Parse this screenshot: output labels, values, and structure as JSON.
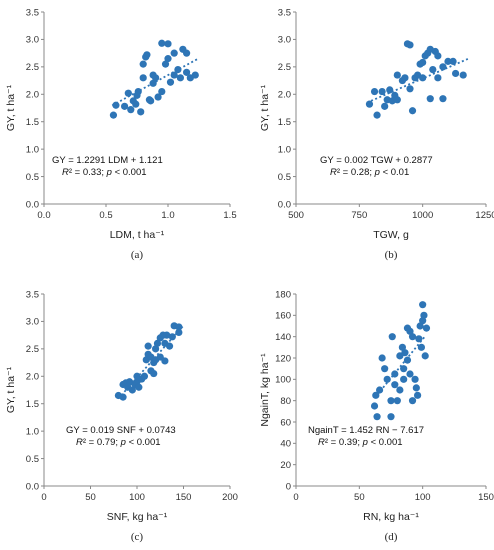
{
  "chart_data": [
    {
      "type": "scatter",
      "panel_label": "(a)",
      "xlabel": "LDM, t ha⁻¹",
      "ylabel": "GY, t ha⁻¹",
      "xlim": [
        0,
        1.5
      ],
      "ylim": [
        0,
        3.5
      ],
      "xticks": [
        "0.0",
        "0.5",
        "1.0",
        "1.5"
      ],
      "yticks": [
        "0.0",
        "0.5",
        "1.0",
        "1.5",
        "2.0",
        "2.5",
        "3.0",
        "3.5"
      ],
      "equation": "GY = 1.2291 LDM + 1.121",
      "stats": "R² = 0.33; p < 0.001",
      "trendline": {
        "slope": 1.2291,
        "intercept": 1.121,
        "x_range": [
          0.55,
          1.25
        ]
      },
      "color": "#2e75b6",
      "points": [
        [
          0.56,
          1.62
        ],
        [
          0.58,
          1.8
        ],
        [
          0.65,
          1.78
        ],
        [
          0.68,
          2.02
        ],
        [
          0.7,
          1.72
        ],
        [
          0.72,
          1.88
        ],
        [
          0.74,
          1.82
        ],
        [
          0.75,
          1.98
        ],
        [
          0.78,
          1.68
        ],
        [
          0.76,
          2.05
        ],
        [
          0.8,
          2.3
        ],
        [
          0.8,
          2.55
        ],
        [
          0.82,
          2.68
        ],
        [
          0.83,
          2.72
        ],
        [
          0.85,
          1.9
        ],
        [
          0.86,
          1.88
        ],
        [
          0.88,
          2.2
        ],
        [
          0.9,
          2.3
        ],
        [
          0.88,
          2.35
        ],
        [
          0.92,
          1.95
        ],
        [
          0.95,
          2.05
        ],
        [
          0.95,
          2.93
        ],
        [
          1.0,
          2.92
        ],
        [
          1.0,
          2.65
        ],
        [
          1.02,
          2.22
        ],
        [
          1.05,
          2.35
        ],
        [
          1.05,
          2.75
        ],
        [
          1.08,
          2.45
        ],
        [
          1.1,
          2.3
        ],
        [
          1.12,
          2.82
        ],
        [
          1.15,
          2.75
        ],
        [
          1.15,
          2.4
        ],
        [
          1.18,
          2.3
        ],
        [
          1.22,
          2.35
        ],
        [
          0.98,
          2.55
        ]
      ]
    },
    {
      "type": "scatter",
      "panel_label": "(b)",
      "xlabel": "TGW, g",
      "ylabel": "GY, t ha⁻¹",
      "xlim": [
        500,
        1250
      ],
      "ylim": [
        0,
        3.5
      ],
      "xticks": [
        "500",
        "750",
        "1000",
        "1250"
      ],
      "yticks": [
        "0.0",
        "0.5",
        "1.0",
        "1.5",
        "2.0",
        "2.5",
        "3.0",
        "3.5"
      ],
      "equation": "GY = 0.002 TGW + 0.2877",
      "stats": "R² = 0.28; p < 0.01",
      "trendline": {
        "slope": 0.002,
        "intercept": 0.2877,
        "x_range": [
          780,
          1180
        ]
      },
      "color": "#2e75b6",
      "points": [
        [
          790,
          1.82
        ],
        [
          810,
          2.05
        ],
        [
          820,
          1.62
        ],
        [
          840,
          2.05
        ],
        [
          850,
          1.78
        ],
        [
          860,
          1.9
        ],
        [
          870,
          2.08
        ],
        [
          880,
          1.88
        ],
        [
          890,
          1.98
        ],
        [
          900,
          1.9
        ],
        [
          900,
          2.35
        ],
        [
          920,
          2.25
        ],
        [
          930,
          2.3
        ],
        [
          940,
          2.92
        ],
        [
          950,
          2.9
        ],
        [
          950,
          2.1
        ],
        [
          960,
          1.7
        ],
        [
          970,
          2.3
        ],
        [
          980,
          2.35
        ],
        [
          990,
          2.55
        ],
        [
          1000,
          2.3
        ],
        [
          1010,
          2.7
        ],
        [
          1020,
          2.75
        ],
        [
          1030,
          2.82
        ],
        [
          1030,
          1.92
        ],
        [
          1040,
          2.45
        ],
        [
          1050,
          2.78
        ],
        [
          1060,
          2.7
        ],
        [
          1060,
          2.3
        ],
        [
          1080,
          1.92
        ],
        [
          1080,
          2.5
        ],
        [
          1100,
          2.6
        ],
        [
          1120,
          2.6
        ],
        [
          1130,
          2.38
        ],
        [
          1160,
          2.35
        ],
        [
          1000,
          2.58
        ]
      ]
    },
    {
      "type": "scatter",
      "panel_label": "(c)",
      "xlabel": "SNF, kg ha⁻¹",
      "ylabel": "GY, t ha⁻¹",
      "xlim": [
        0,
        200
      ],
      "ylim": [
        0,
        3.5
      ],
      "xticks": [
        "0",
        "50",
        "100",
        "150",
        "200"
      ],
      "yticks": [
        "0.0",
        "0.5",
        "1.0",
        "1.5",
        "2.0",
        "2.5",
        "3.0",
        "3.5"
      ],
      "equation": "GY = 0.019 SNF + 0.0743",
      "stats": "R² = 0.79; p < 0.001",
      "trendline": {
        "slope": 0.019,
        "intercept": 0.0743,
        "x_range": [
          80,
          150
        ]
      },
      "color": "#2e75b6",
      "points": [
        [
          80,
          1.65
        ],
        [
          85,
          1.62
        ],
        [
          85,
          1.85
        ],
        [
          88,
          1.88
        ],
        [
          90,
          1.8
        ],
        [
          92,
          1.9
        ],
        [
          95,
          1.75
        ],
        [
          98,
          1.85
        ],
        [
          100,
          1.9
        ],
        [
          100,
          2.0
        ],
        [
          102,
          1.8
        ],
        [
          105,
          1.95
        ],
        [
          108,
          2.0
        ],
        [
          110,
          2.3
        ],
        [
          112,
          2.4
        ],
        [
          115,
          2.35
        ],
        [
          115,
          2.1
        ],
        [
          118,
          2.25
        ],
        [
          120,
          2.3
        ],
        [
          120,
          2.5
        ],
        [
          122,
          2.6
        ],
        [
          125,
          2.35
        ],
        [
          125,
          2.7
        ],
        [
          128,
          2.75
        ],
        [
          130,
          2.6
        ],
        [
          130,
          2.28
        ],
        [
          132,
          2.75
        ],
        [
          135,
          2.55
        ],
        [
          138,
          2.72
        ],
        [
          140,
          2.92
        ],
        [
          145,
          2.9
        ],
        [
          145,
          2.8
        ],
        [
          112,
          2.55
        ],
        [
          118,
          2.05
        ]
      ]
    },
    {
      "type": "scatter",
      "panel_label": "(d)",
      "xlabel": "RN, kg ha⁻¹",
      "ylabel": "NgainT, kg ha⁻¹",
      "xlim": [
        0,
        150
      ],
      "ylim": [
        0,
        180
      ],
      "xticks": [
        "0",
        "50",
        "100",
        "150"
      ],
      "yticks": [
        "0",
        "20",
        "40",
        "60",
        "80",
        "100",
        "120",
        "140",
        "160",
        "180"
      ],
      "equation": "NgainT = 1.452 RN − 7.617",
      "stats": "R² = 0.39; p < 0.001",
      "trendline": {
        "slope": 1.452,
        "intercept": -7.617,
        "x_range": [
          62,
          102
        ]
      },
      "color": "#2e75b6",
      "points": [
        [
          62,
          75
        ],
        [
          63,
          85
        ],
        [
          64,
          65
        ],
        [
          66,
          90
        ],
        [
          68,
          120
        ],
        [
          70,
          110
        ],
        [
          72,
          100
        ],
        [
          75,
          65
        ],
        [
          75,
          80
        ],
        [
          76,
          140
        ],
        [
          78,
          95
        ],
        [
          78,
          105
        ],
        [
          80,
          80
        ],
        [
          82,
          90
        ],
        [
          82,
          122
        ],
        [
          84,
          130
        ],
        [
          85,
          110
        ],
        [
          86,
          125
        ],
        [
          88,
          118
        ],
        [
          88,
          148
        ],
        [
          90,
          145
        ],
        [
          90,
          105
        ],
        [
          92,
          140
        ],
        [
          92,
          80
        ],
        [
          94,
          100
        ],
        [
          95,
          92
        ],
        [
          96,
          85
        ],
        [
          97,
          138
        ],
        [
          98,
          150
        ],
        [
          99,
          130
        ],
        [
          100,
          170
        ],
        [
          100,
          155
        ],
        [
          102,
          122
        ],
        [
          103,
          148
        ],
        [
          101,
          160
        ],
        [
          85,
          100
        ]
      ]
    }
  ]
}
